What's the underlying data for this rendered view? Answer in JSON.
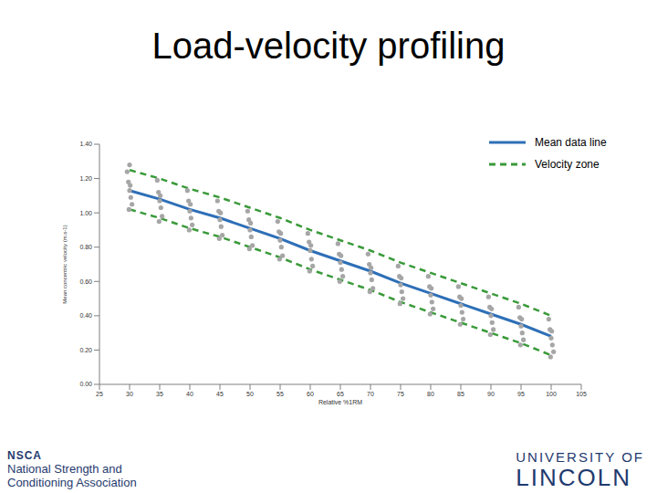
{
  "chart_data": {
    "type": "scatter",
    "title": "Load-velocity profiling",
    "x_label": "Relative %1RM",
    "y_label": "Mean concentric velocity (m.s-1)",
    "xlim": [
      25,
      105
    ],
    "xticks": [
      25,
      30,
      35,
      40,
      45,
      50,
      55,
      60,
      65,
      70,
      75,
      80,
      85,
      90,
      95,
      100,
      105
    ],
    "ylim": [
      0,
      1.4
    ],
    "yticks": [
      {
        "value": 0,
        "label": "0.00"
      },
      {
        "value": 0.2,
        "label": "0.20"
      },
      {
        "value": 0.4,
        "label": "0.40"
      },
      {
        "value": 0.6,
        "label": "0.60"
      },
      {
        "value": 0.8,
        "label": "0.80"
      },
      {
        "value": 1,
        "label": "1.00"
      },
      {
        "value": 1.2,
        "label": "1.20"
      },
      {
        "value": 1.4,
        "label": "1.40"
      }
    ],
    "grid": false,
    "legend": "upper right",
    "scatter": {
      "color": "#a6a6a6",
      "marker": "circle",
      "x": [
        29.6,
        29.8,
        30,
        30.2,
        30.4,
        30.1,
        29.9,
        30,
        34.6,
        34.8,
        35,
        35.2,
        35.4,
        35.1,
        34.9,
        39.6,
        39.8,
        40,
        40.2,
        40.4,
        40.1,
        39.9,
        44.6,
        44.8,
        45,
        45.2,
        45.4,
        45.1,
        44.9,
        49.6,
        49.8,
        50,
        50.2,
        50.4,
        50.1,
        49.9,
        54.6,
        54.8,
        55,
        55.2,
        55.4,
        55.1,
        54.9,
        59.6,
        59.8,
        60,
        60.2,
        60.4,
        60.1,
        59.9,
        64.6,
        64.8,
        65,
        65.2,
        65.4,
        65.1,
        64.9,
        69.6,
        69.8,
        70,
        70.2,
        70.4,
        70.1,
        69.9,
        74.6,
        74.8,
        75,
        75.2,
        75.4,
        75.1,
        74.9,
        79.6,
        79.8,
        80,
        80.2,
        80.4,
        80.1,
        79.9,
        84.6,
        84.8,
        85,
        85.2,
        85.4,
        85.1,
        84.9,
        89.6,
        89.8,
        90,
        90.2,
        90.4,
        90.1,
        89.9,
        94.6,
        94.8,
        95,
        95.2,
        95.4,
        95.1,
        94.9,
        99.6,
        99.8,
        100,
        100.2,
        100.4,
        100.1,
        99.9
      ],
      "y": [
        1.24,
        1.18,
        1.13,
        1.09,
        1.05,
        1.16,
        1.02,
        1.28,
        1.19,
        1.12,
        1.07,
        1.03,
        0.98,
        1.1,
        0.95,
        1.13,
        1.07,
        1.01,
        0.97,
        0.93,
        1.05,
        0.9,
        1.07,
        1.01,
        0.96,
        0.92,
        0.87,
        1.0,
        0.85,
        1.01,
        0.96,
        0.9,
        0.86,
        0.81,
        0.94,
        0.79,
        0.95,
        0.89,
        0.84,
        0.8,
        0.75,
        0.88,
        0.73,
        0.88,
        0.83,
        0.78,
        0.73,
        0.69,
        0.81,
        0.66,
        0.82,
        0.76,
        0.71,
        0.67,
        0.63,
        0.75,
        0.6,
        0.76,
        0.7,
        0.65,
        0.61,
        0.56,
        0.68,
        0.54,
        0.69,
        0.63,
        0.58,
        0.54,
        0.5,
        0.62,
        0.47,
        0.63,
        0.57,
        0.52,
        0.48,
        0.44,
        0.56,
        0.41,
        0.57,
        0.51,
        0.46,
        0.42,
        0.38,
        0.5,
        0.35,
        0.51,
        0.45,
        0.4,
        0.36,
        0.32,
        0.44,
        0.29,
        0.45,
        0.39,
        0.34,
        0.3,
        0.26,
        0.38,
        0.23,
        0.38,
        0.32,
        0.27,
        0.23,
        0.19,
        0.31,
        0.16
      ]
    },
    "x": [
      30,
      35,
      40,
      45,
      50,
      55,
      60,
      65,
      70,
      75,
      80,
      85,
      90,
      95,
      100
    ],
    "series": [
      {
        "name": "Mean data line",
        "type": "line",
        "color": "#2e6fb7",
        "line_style": "solid",
        "values": [
          1.13,
          1.08,
          1.02,
          0.97,
          0.91,
          0.85,
          0.78,
          0.72,
          0.66,
          0.59,
          0.53,
          0.47,
          0.41,
          0.35,
          0.28
        ]
      },
      {
        "name": "Velocity zone",
        "type": "line",
        "color": "#3a9a3a",
        "line_style": "dashed",
        "values": [
          1.25,
          1.2,
          1.14,
          1.09,
          1.03,
          0.97,
          0.9,
          0.84,
          0.78,
          0.71,
          0.65,
          0.59,
          0.53,
          0.47,
          0.4
        ]
      },
      {
        "name": "Velocity zone",
        "type": "line",
        "color": "#3a9a3a",
        "line_style": "dashed",
        "values": [
          1.02,
          0.97,
          0.91,
          0.86,
          0.8,
          0.74,
          0.67,
          0.61,
          0.55,
          0.48,
          0.42,
          0.36,
          0.3,
          0.24,
          0.17
        ]
      }
    ],
    "annotations": [
      "NSCA",
      "National Strength and",
      "Conditioning Association",
      "UNIVERSITY OF",
      "LINCOLN"
    ]
  }
}
